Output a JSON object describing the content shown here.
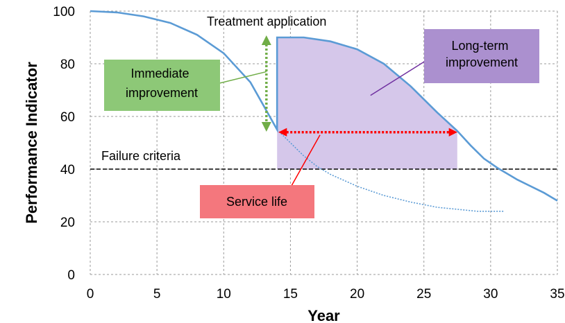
{
  "chart_data": {
    "type": "line",
    "xlabel": "Year",
    "ylabel": "Performance Indicator",
    "xlim": [
      0,
      35
    ],
    "ylim": [
      0,
      100
    ],
    "xticks": [
      0,
      5,
      10,
      15,
      20,
      25,
      30,
      35
    ],
    "yticks": [
      0,
      20,
      40,
      60,
      80,
      100
    ],
    "grid": true,
    "series": [
      {
        "line": "solid",
        "color": "#5b9bd5",
        "points": [
          [
            0,
            100
          ],
          [
            2,
            99.5
          ],
          [
            4,
            98
          ],
          [
            6,
            95.5
          ],
          [
            8,
            91
          ],
          [
            10,
            84
          ],
          [
            12,
            73
          ],
          [
            13,
            64
          ],
          [
            14,
            55
          ],
          [
            14,
            90
          ],
          [
            16,
            90
          ],
          [
            18,
            88.5
          ],
          [
            20,
            85.5
          ],
          [
            22,
            80
          ],
          [
            24,
            71.5
          ],
          [
            26,
            61.5
          ],
          [
            27.5,
            54.5
          ],
          [
            28.5,
            49
          ],
          [
            29.5,
            44
          ],
          [
            30.5,
            40.5
          ],
          [
            32,
            36
          ],
          [
            34,
            31
          ],
          [
            35,
            28
          ]
        ]
      },
      {
        "line": "dotted",
        "color": "#5b9bd5",
        "points": [
          [
            14,
            55
          ],
          [
            15,
            50
          ],
          [
            16,
            45
          ],
          [
            17,
            41
          ],
          [
            18,
            38
          ],
          [
            20,
            33.5
          ],
          [
            22,
            30
          ],
          [
            24,
            27.5
          ],
          [
            26,
            25.5
          ],
          [
            28,
            24.5
          ],
          [
            29,
            24
          ],
          [
            31,
            24
          ]
        ]
      }
    ],
    "failure_criteria": {
      "label": "Failure criteria",
      "y": 40
    },
    "treatment": {
      "label": "Treatment application",
      "x": 13.2,
      "y_from": 55,
      "y_to": 90,
      "color": "#70ad47"
    },
    "shaded_region": {
      "x_from": 14,
      "x_to": 27.5,
      "y_base": 40,
      "color": "#d5c7ea"
    },
    "service_life": {
      "label": "Service life",
      "x_from": 14,
      "x_to": 27.5,
      "y": 54,
      "color": "#ff0000",
      "box_color": "#f4777d"
    },
    "callouts": [
      {
        "id": "immediate",
        "lines": [
          "Immediate",
          "improvement"
        ],
        "color": "#8dc877",
        "leader_color": "#70ad47",
        "point_x": 13.2,
        "point_y": 75
      },
      {
        "id": "long-term",
        "lines": [
          "Long-term",
          "improvement"
        ],
        "color": "#ab90cf",
        "leader_color": "#7030a0",
        "point_x": 21,
        "point_y": 68
      }
    ]
  }
}
